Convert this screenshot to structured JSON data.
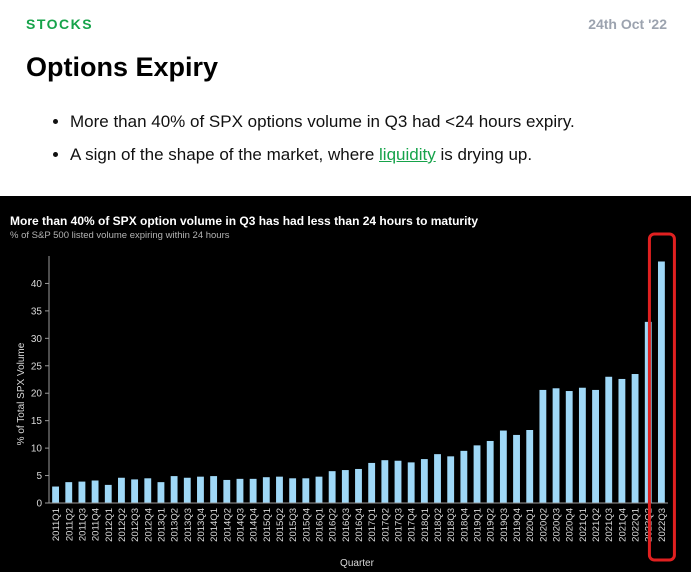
{
  "header": {
    "category": "STOCKS",
    "date": "24th Oct '22"
  },
  "title": "Options Expiry",
  "bullets": {
    "item1": "More than 40% of SPX options volume in Q3 had <24 hours expiry.",
    "item2_before": "A sign of the shape of the market, where ",
    "item2_link": "liquidity",
    "item2_after": " is drying up."
  },
  "colors": {
    "accent": "#16a34a",
    "bar": "#9fd8f7",
    "highlight": "#e02020",
    "chart_bg": "#000000"
  },
  "chart_data": {
    "type": "bar",
    "title": "More than 40% of SPX option volume in Q3 has had less than 24 hours to maturity",
    "subtitle": "% of S&P 500 listed volume expiring within 24 hours",
    "xlabel": "Quarter",
    "ylabel": "% of Total SPX Volume",
    "ylim": [
      0,
      45
    ],
    "yticks": [
      0,
      5,
      10,
      15,
      20,
      25,
      30,
      35,
      40
    ],
    "grid": false,
    "highlight": "2022Q3",
    "categories": [
      "2011Q1",
      "2011Q2",
      "2011Q3",
      "2011Q4",
      "2012Q1",
      "2012Q2",
      "2012Q3",
      "2012Q4",
      "2013Q1",
      "2013Q2",
      "2013Q3",
      "2013Q4",
      "2014Q1",
      "2014Q2",
      "2014Q3",
      "2014Q4",
      "2015Q1",
      "2015Q2",
      "2015Q3",
      "2015Q4",
      "2016Q1",
      "2016Q2",
      "2016Q3",
      "2016Q4",
      "2017Q1",
      "2017Q2",
      "2017Q3",
      "2017Q4",
      "2018Q1",
      "2018Q2",
      "2018Q3",
      "2018Q4",
      "2019Q1",
      "2019Q2",
      "2019Q3",
      "2019Q4",
      "2020Q1",
      "2020Q2",
      "2020Q3",
      "2020Q4",
      "2021Q1",
      "2021Q2",
      "2021Q3",
      "2021Q4",
      "2022Q1",
      "2022Q2",
      "2022Q3"
    ],
    "values": [
      3.0,
      3.8,
      3.9,
      4.1,
      3.3,
      4.6,
      4.3,
      4.5,
      3.8,
      4.9,
      4.6,
      4.8,
      4.9,
      4.2,
      4.4,
      4.4,
      4.7,
      4.8,
      4.5,
      4.5,
      4.8,
      5.8,
      6.0,
      6.2,
      7.3,
      7.8,
      7.7,
      7.4,
      8.0,
      8.9,
      8.5,
      9.5,
      10.5,
      11.3,
      13.2,
      12.4,
      13.3,
      20.6,
      20.9,
      20.4,
      21.0,
      20.6,
      23.0,
      22.6,
      23.5,
      33.0,
      44.0
    ]
  }
}
